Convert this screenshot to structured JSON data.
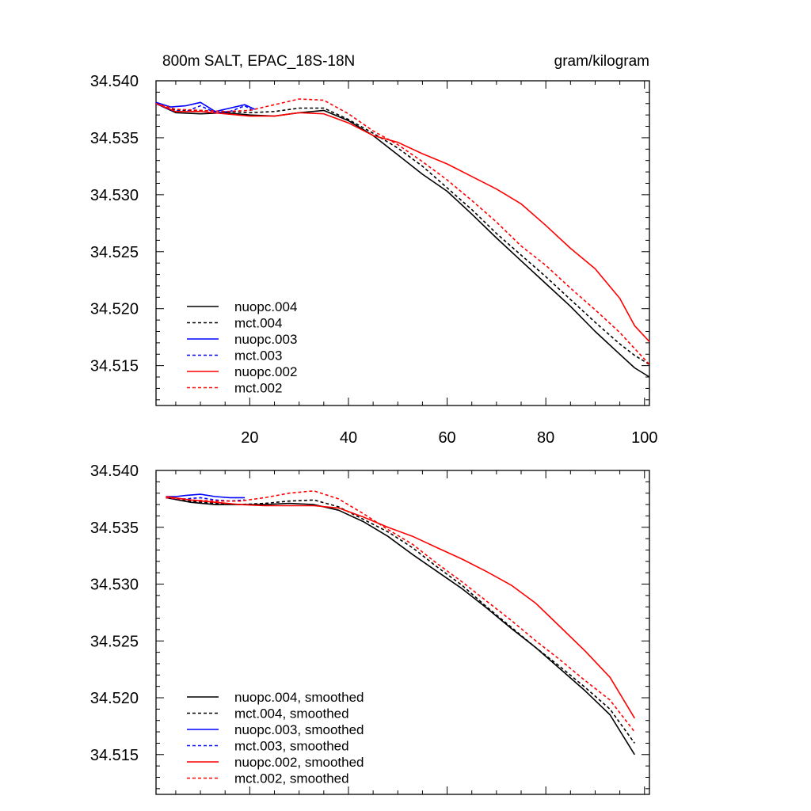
{
  "chart_data": [
    {
      "type": "line",
      "title": "800m SALT, EPAC_18S-18N",
      "units": "gram/kilogram",
      "xlim": [
        1,
        101
      ],
      "ylim": [
        34.5115,
        34.54
      ],
      "xticks": [
        20,
        40,
        60,
        80,
        100
      ],
      "xtick_labels": [
        "20",
        "40",
        "60",
        "80",
        "100"
      ],
      "yticks": [
        34.515,
        34.52,
        34.525,
        34.53,
        34.535,
        34.54
      ],
      "ytick_labels": [
        "34.515",
        "34.520",
        "34.525",
        "34.530",
        "34.535",
        "34.540"
      ],
      "grid": false,
      "legend_position": "bottom-left",
      "series": [
        {
          "name": "nuopc.004",
          "color": "#000000",
          "dash": "solid",
          "x": [
            1,
            5,
            10,
            15,
            20,
            25,
            30,
            35,
            40,
            45,
            50,
            55,
            60,
            65,
            70,
            75,
            80,
            85,
            90,
            95,
            98,
            101
          ],
          "y": [
            34.538,
            34.5372,
            34.5371,
            34.5372,
            34.537,
            34.5369,
            34.5372,
            34.5374,
            34.5365,
            34.5352,
            34.5335,
            34.5318,
            34.5303,
            34.5283,
            34.5262,
            34.5242,
            34.5222,
            34.5202,
            34.518,
            34.516,
            34.5148,
            34.514
          ]
        },
        {
          "name": "mct.004",
          "color": "#000000",
          "dash": "dashed",
          "x": [
            1,
            5,
            10,
            15,
            20,
            25,
            30,
            35,
            40,
            45,
            50,
            55,
            60,
            65,
            70,
            75,
            80,
            85,
            90,
            95,
            98,
            101
          ],
          "y": [
            34.538,
            34.5374,
            34.5374,
            34.5373,
            34.5372,
            34.5373,
            34.5376,
            34.5376,
            34.5366,
            34.5354,
            34.5341,
            34.5325,
            34.5306,
            34.5287,
            34.5266,
            34.5247,
            34.5228,
            34.5208,
            34.5188,
            34.5169,
            34.5159,
            34.5151
          ]
        },
        {
          "name": "nuopc.003",
          "color": "#0000ff",
          "dash": "solid",
          "x": [
            1,
            4,
            7,
            10,
            13,
            16,
            19,
            21
          ],
          "y": [
            34.5381,
            34.5377,
            34.5378,
            34.5381,
            34.5373,
            34.5376,
            34.5379,
            34.5375
          ]
        },
        {
          "name": "mct.003",
          "color": "#0000ff",
          "dash": "dashed",
          "x": [
            1,
            4,
            7,
            10,
            13,
            16,
            19,
            21
          ],
          "y": [
            34.538,
            34.5374,
            34.5373,
            34.5378,
            34.5372,
            34.5373,
            34.5378,
            34.5373
          ]
        },
        {
          "name": "nuopc.002",
          "color": "#ff0000",
          "dash": "solid",
          "x": [
            1,
            5,
            10,
            15,
            20,
            25,
            30,
            35,
            40,
            45,
            50,
            55,
            60,
            65,
            70,
            75,
            80,
            85,
            90,
            95,
            98,
            101
          ],
          "y": [
            34.538,
            34.5373,
            34.5373,
            34.5371,
            34.5369,
            34.5369,
            34.5372,
            34.5371,
            34.5363,
            34.5352,
            34.5346,
            34.5336,
            34.5327,
            34.5316,
            34.5305,
            34.5292,
            34.5273,
            34.5253,
            34.5235,
            34.5209,
            34.5185,
            34.5171
          ]
        },
        {
          "name": "mct.002",
          "color": "#ff0000",
          "dash": "dashed",
          "x": [
            1,
            5,
            10,
            15,
            20,
            25,
            30,
            35,
            40,
            45,
            50,
            55,
            60,
            65,
            70,
            75,
            80,
            85,
            90,
            95,
            98,
            101
          ],
          "y": [
            34.538,
            34.5375,
            34.5374,
            34.5373,
            34.5374,
            34.5379,
            34.5384,
            34.5383,
            34.5371,
            34.5356,
            34.5344,
            34.5329,
            34.5313,
            34.5295,
            34.5276,
            34.5255,
            34.5238,
            34.5218,
            34.5199,
            34.5179,
            34.5165,
            34.5151
          ]
        }
      ]
    },
    {
      "type": "line",
      "xlim": [
        1,
        101
      ],
      "ylim": [
        34.5115,
        34.54
      ],
      "xticks": [
        20,
        40,
        60,
        80,
        100
      ],
      "yticks": [
        34.515,
        34.52,
        34.525,
        34.53,
        34.535,
        34.54
      ],
      "ytick_labels": [
        "34.515",
        "34.520",
        "34.525",
        "34.530",
        "34.535",
        "34.540"
      ],
      "grid": false,
      "legend_position": "bottom-left",
      "series": [
        {
          "name": "nuopc.004, smoothed",
          "color": "#000000",
          "dash": "solid",
          "x": [
            3,
            8,
            13,
            18,
            23,
            28,
            33,
            38,
            43,
            48,
            53,
            58,
            63,
            68,
            73,
            78,
            83,
            88,
            93,
            98
          ],
          "y": [
            34.5376,
            34.5372,
            34.537,
            34.537,
            34.537,
            34.5371,
            34.537,
            34.5365,
            34.5355,
            34.5342,
            34.5326,
            34.5311,
            34.5296,
            34.5279,
            34.5261,
            34.5244,
            34.5225,
            34.5206,
            34.5185,
            34.515
          ]
        },
        {
          "name": "mct.004, smoothed",
          "color": "#000000",
          "dash": "dashed",
          "x": [
            3,
            8,
            13,
            18,
            23,
            28,
            33,
            38,
            43,
            48,
            53,
            58,
            63,
            68,
            73,
            78,
            83,
            88,
            93,
            98
          ],
          "y": [
            34.5376,
            34.5373,
            34.5371,
            34.537,
            34.5371,
            34.5373,
            34.5374,
            34.5368,
            34.5357,
            34.5346,
            34.5332,
            34.5315,
            34.5299,
            34.528,
            34.5262,
            34.5244,
            34.5227,
            34.5209,
            34.519,
            34.516
          ]
        },
        {
          "name": "nuopc.003, smoothed",
          "color": "#0000ff",
          "dash": "solid",
          "x": [
            3,
            5,
            7,
            10,
            13,
            16,
            19
          ],
          "y": [
            34.5377,
            34.5377,
            34.5378,
            34.5379,
            34.5377,
            34.5376,
            34.5376
          ]
        },
        {
          "name": "mct.003, smoothed",
          "color": "#0000ff",
          "dash": "dashed",
          "x": [
            3,
            5,
            7,
            10,
            13,
            16,
            19
          ],
          "y": [
            34.5376,
            34.5375,
            34.5375,
            34.5376,
            34.5374,
            34.5373,
            34.5374
          ]
        },
        {
          "name": "nuopc.002, smoothed",
          "color": "#ff0000",
          "dash": "solid",
          "x": [
            3,
            8,
            13,
            18,
            23,
            28,
            33,
            38,
            43,
            48,
            53,
            58,
            63,
            68,
            73,
            78,
            83,
            88,
            93,
            98
          ],
          "y": [
            34.5377,
            34.5374,
            34.5372,
            34.537,
            34.5369,
            34.5369,
            34.5369,
            34.5367,
            34.5359,
            34.535,
            34.5342,
            34.5332,
            34.5322,
            34.5311,
            34.5299,
            34.5283,
            34.5262,
            34.5241,
            34.5218,
            34.5182
          ]
        },
        {
          "name": "mct.002, smoothed",
          "color": "#ff0000",
          "dash": "dashed",
          "x": [
            3,
            8,
            13,
            18,
            23,
            28,
            33,
            38,
            43,
            48,
            53,
            58,
            63,
            68,
            73,
            78,
            83,
            88,
            93,
            98
          ],
          "y": [
            34.5376,
            34.5374,
            34.5373,
            34.5373,
            34.5376,
            34.538,
            34.5382,
            34.5375,
            34.5362,
            34.5348,
            34.5335,
            34.5318,
            34.5302,
            34.5285,
            34.5268,
            34.525,
            34.5233,
            34.5215,
            34.5198,
            34.517
          ]
        }
      ]
    }
  ]
}
